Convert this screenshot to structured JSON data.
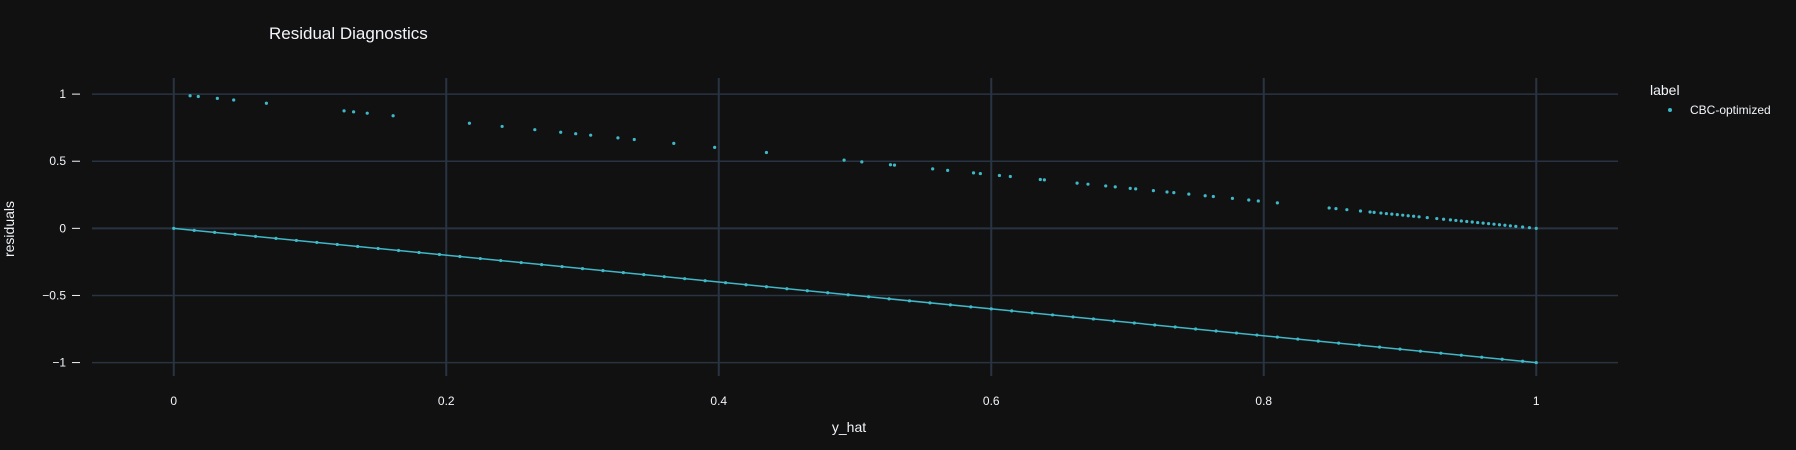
{
  "chart_data": {
    "type": "scatter",
    "title": "Residual Diagnostics",
    "xlabel": "y_hat",
    "ylabel": "residuals",
    "xlim": [
      -0.06,
      1.06
    ],
    "ylim": [
      -1.1,
      1.12
    ],
    "x_ticks": [
      0,
      0.2,
      0.4,
      0.6,
      0.8,
      1
    ],
    "x_tick_labels": [
      "0",
      "0.2",
      "0.4",
      "0.6",
      "0.8",
      "1"
    ],
    "y_ticks": [
      1,
      0.5,
      0,
      -0.5,
      -1
    ],
    "y_tick_labels": [
      "1",
      "0.5",
      "0",
      "−0.5",
      "−1"
    ],
    "grid": true,
    "legend": {
      "title": "label",
      "placement": "right"
    },
    "series": [
      {
        "name": "CBC-optimized",
        "color": "#3fb8c8",
        "description": "Residuals fall on two lines: residual = 1 - y_hat for upper points and residual = -y_hat for lower points.",
        "upper_x": [
          0.012,
          0.018,
          0.032,
          0.044,
          0.068,
          0.125,
          0.132,
          0.142,
          0.161,
          0.217,
          0.241,
          0.265,
          0.284,
          0.295,
          0.306,
          0.326,
          0.338,
          0.367,
          0.397,
          0.435,
          0.492,
          0.505,
          0.526,
          0.529,
          0.557,
          0.568,
          0.587,
          0.592,
          0.606,
          0.614,
          0.636,
          0.639,
          0.663,
          0.671,
          0.684,
          0.691,
          0.702,
          0.706,
          0.719,
          0.729,
          0.734,
          0.745,
          0.757,
          0.763,
          0.777,
          0.789,
          0.796,
          0.81,
          0.848,
          0.853,
          0.861,
          0.871,
          0.878,
          0.881,
          0.886,
          0.89,
          0.894,
          0.898,
          0.902,
          0.906,
          0.91,
          0.914,
          0.92,
          0.927,
          0.932,
          0.937,
          0.941,
          0.945,
          0.949,
          0.953,
          0.957,
          0.961,
          0.965,
          0.969,
          0.973,
          0.977,
          0.981,
          0.985,
          0.99,
          0.995,
          1.0
        ],
        "lower_x": [
          0,
          0.015,
          0.03,
          0.045,
          0.06,
          0.075,
          0.09,
          0.105,
          0.12,
          0.135,
          0.15,
          0.165,
          0.18,
          0.195,
          0.21,
          0.225,
          0.24,
          0.255,
          0.27,
          0.285,
          0.3,
          0.315,
          0.33,
          0.345,
          0.36,
          0.375,
          0.39,
          0.405,
          0.42,
          0.435,
          0.45,
          0.465,
          0.48,
          0.495,
          0.51,
          0.525,
          0.54,
          0.555,
          0.57,
          0.585,
          0.6,
          0.615,
          0.63,
          0.645,
          0.66,
          0.675,
          0.69,
          0.705,
          0.72,
          0.735,
          0.75,
          0.765,
          0.78,
          0.795,
          0.81,
          0.825,
          0.84,
          0.855,
          0.87,
          0.885,
          0.9,
          0.915,
          0.93,
          0.945,
          0.96,
          0.975,
          0.99,
          1.0
        ]
      }
    ]
  }
}
